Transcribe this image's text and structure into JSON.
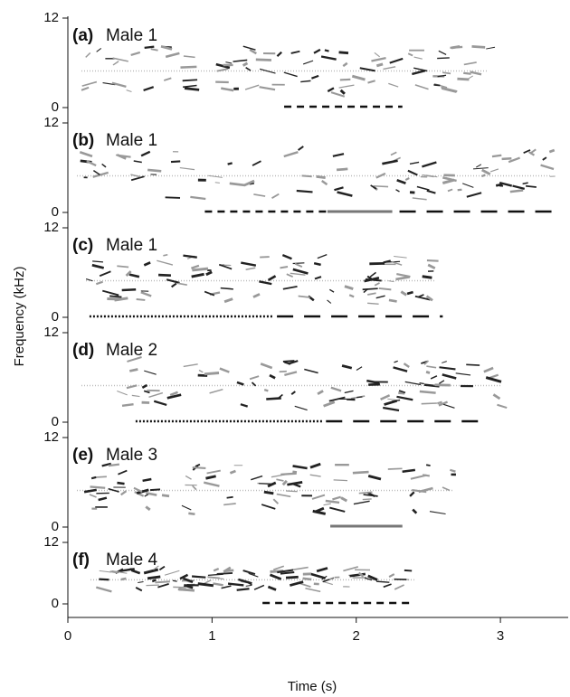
{
  "chart_data": {
    "type": "spectrogram",
    "y_label": "Frequency (kHz)",
    "x_label": "Time (s)",
    "xlim": [
      0,
      3.47
    ],
    "xticks": [
      0,
      1,
      2,
      3
    ],
    "panels": [
      {
        "label": "(a)",
        "title": "Male 1",
        "ylim": [
          0,
          12
        ],
        "yticks": [
          0,
          12
        ],
        "underlines": [
          {
            "style": "dashed",
            "color": "#111111",
            "start": 1.5,
            "end": 2.32
          }
        ]
      },
      {
        "label": "(b)",
        "title": "Male 1",
        "ylim": [
          0,
          12
        ],
        "yticks": [
          0,
          12
        ],
        "underlines": [
          {
            "style": "dashed",
            "color": "#111111",
            "start": 0.95,
            "end": 1.8
          },
          {
            "style": "solid",
            "color": "#777777",
            "start": 1.8,
            "end": 2.25
          },
          {
            "style": "long-dash",
            "color": "#111111",
            "start": 2.3,
            "end": 3.42
          }
        ]
      },
      {
        "label": "(c)",
        "title": "Male 1",
        "ylim": [
          0,
          12
        ],
        "yticks": [
          0,
          12
        ],
        "underlines": [
          {
            "style": "dotted",
            "color": "#111111",
            "start": 0.15,
            "end": 1.43
          },
          {
            "style": "long-dash",
            "color": "#111111",
            "start": 1.45,
            "end": 2.6
          }
        ]
      },
      {
        "label": "(d)",
        "title": "Male 2",
        "ylim": [
          0,
          12
        ],
        "yticks": [
          0,
          12
        ],
        "underlines": [
          {
            "style": "dotted",
            "color": "#111111",
            "start": 0.47,
            "end": 1.77
          },
          {
            "style": "long-dash",
            "color": "#111111",
            "start": 1.79,
            "end": 2.9
          }
        ]
      },
      {
        "label": "(e)",
        "title": "Male 3",
        "ylim": [
          0,
          12
        ],
        "yticks": [
          0,
          12
        ],
        "underlines": [
          {
            "style": "solid",
            "color": "#777777",
            "start": 1.82,
            "end": 2.32
          }
        ]
      },
      {
        "label": "(f)",
        "title": "Male 4",
        "ylim": [
          0,
          12
        ],
        "yticks": [
          0,
          12
        ],
        "underlines": [
          {
            "style": "dashed",
            "color": "#111111",
            "start": 1.35,
            "end": 2.37
          }
        ]
      }
    ]
  }
}
